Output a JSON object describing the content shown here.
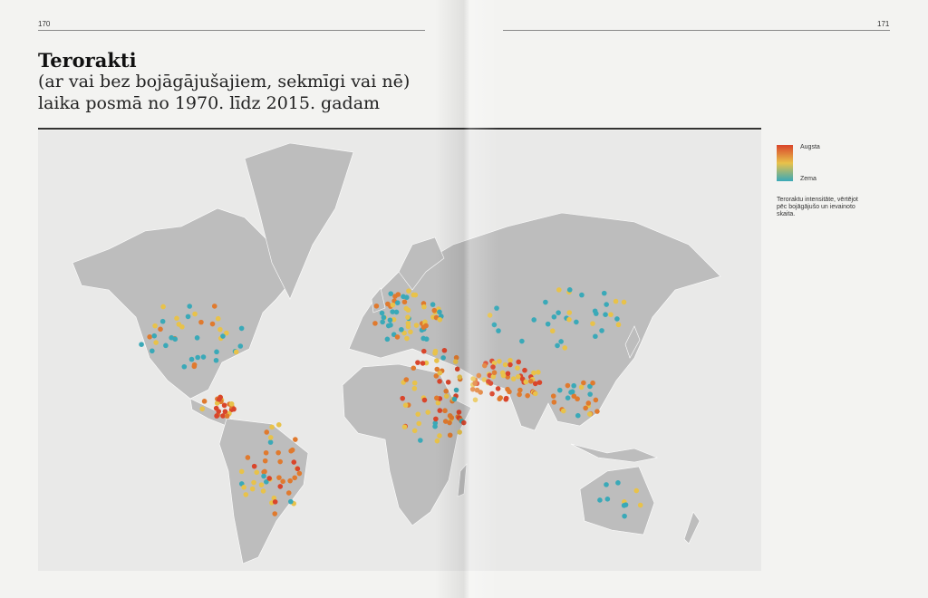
{
  "page_numbers": {
    "left": "170",
    "right": "171"
  },
  "header": {
    "title": "Terorakti",
    "subtitle_lines": [
      "(ar vai bez bojāgājušajiem, sekmīgi vai nē)",
      "laika posmā no 1970. līdz 2015. gadam"
    ]
  },
  "legend": {
    "high": "Augsta",
    "low": "Zema",
    "note": "Teroraktu intensitāte, vērtējot pēc bojāgājušo un ievainoto skaita."
  }
}
